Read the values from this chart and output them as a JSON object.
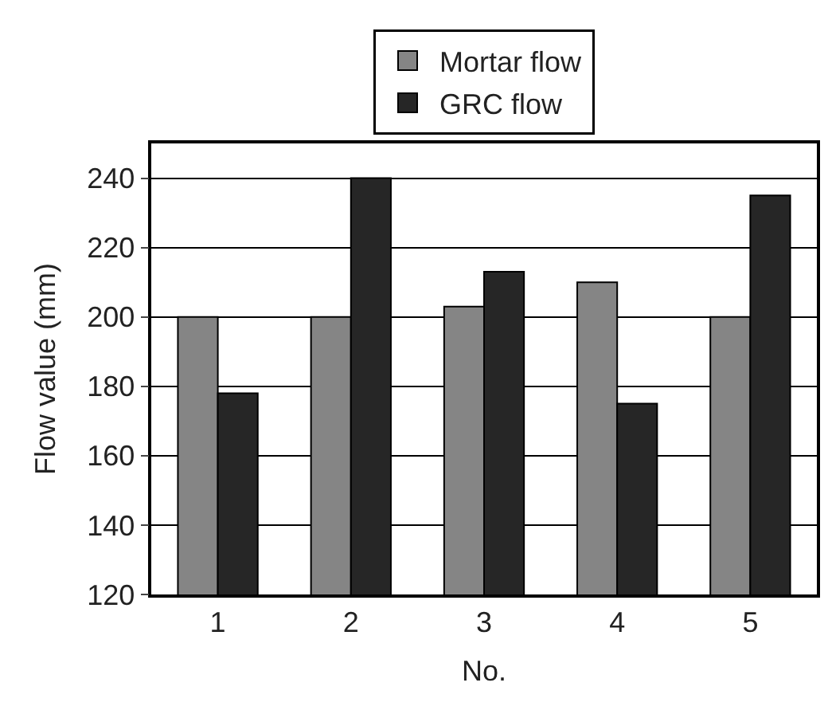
{
  "chart_data": {
    "type": "bar",
    "xlabel": "No.",
    "ylabel": "Flow value (mm)",
    "categories": [
      "1",
      "2",
      "3",
      "4",
      "5"
    ],
    "series": [
      {
        "name": "Mortar flow",
        "color": "#858585",
        "values": [
          200,
          200,
          203,
          210,
          200
        ]
      },
      {
        "name": "GRC flow",
        "color": "#262626",
        "values": [
          178,
          240,
          213,
          175,
          235
        ]
      }
    ],
    "ylim": [
      120,
      250
    ],
    "yticks": [
      120,
      140,
      160,
      180,
      200,
      220,
      240
    ],
    "grid": "y",
    "legend": "top"
  }
}
